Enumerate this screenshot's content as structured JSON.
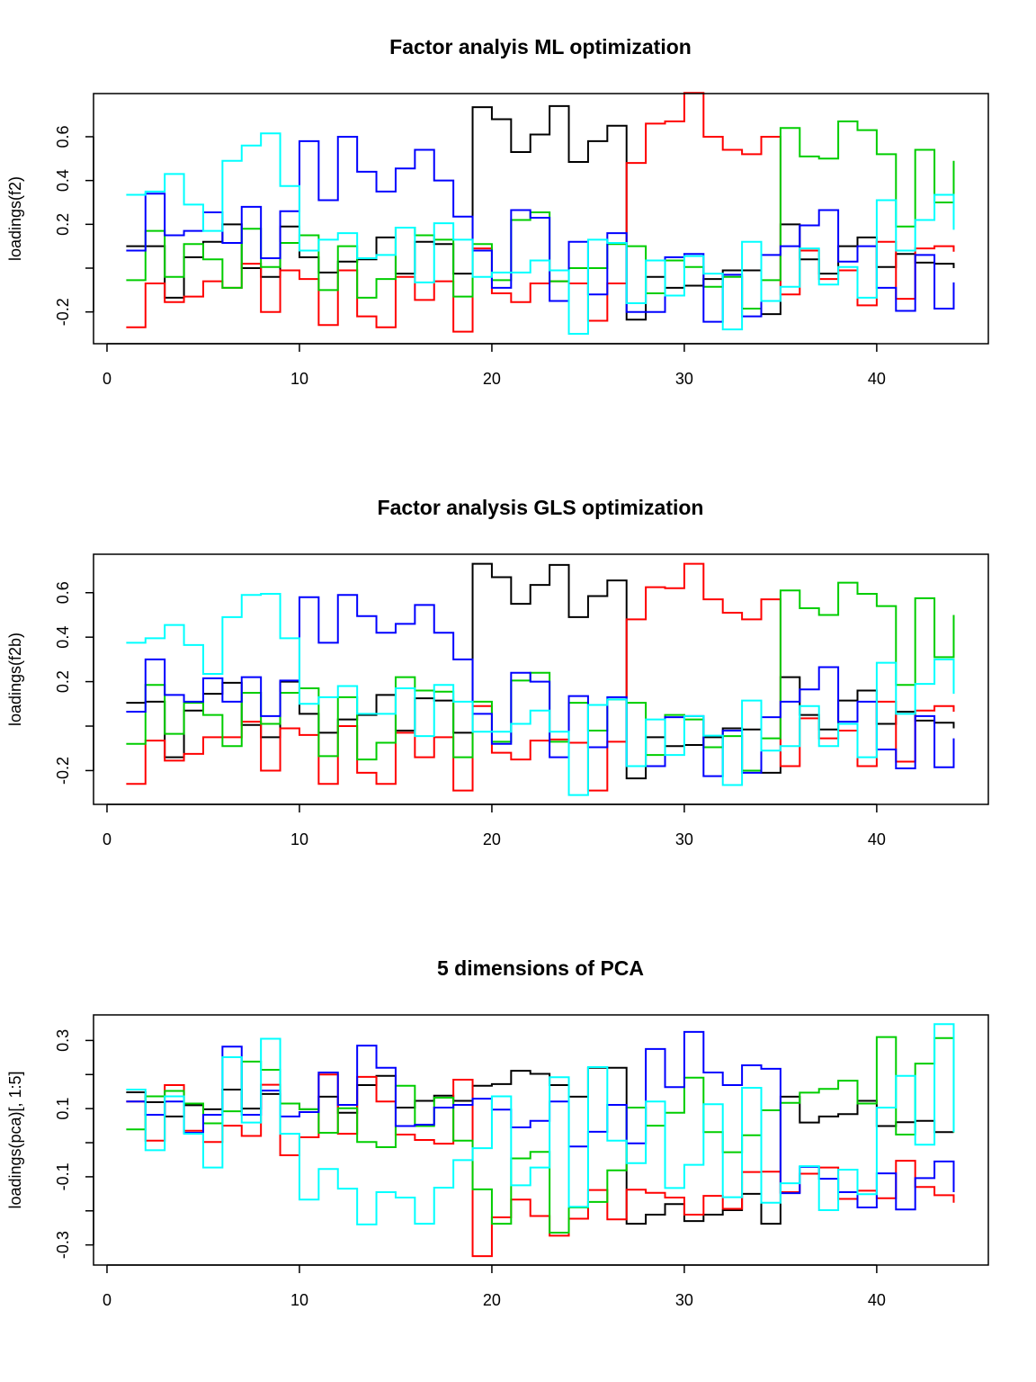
{
  "colors": {
    "series1": "#000000",
    "series2": "#ff0000",
    "series3": "#00cd00",
    "series4": "#0000ff",
    "series5": "#00ffff"
  },
  "chart_data": [
    {
      "type": "line",
      "step": true,
      "title": "Factor analyis ML optimization",
      "xlabel": "",
      "ylabel": "loadings(f2)",
      "xlim": [
        -0.7,
        45.8
      ],
      "ylim": [
        -0.345,
        0.797
      ],
      "xticks": [
        0,
        10,
        20,
        30,
        40
      ],
      "yticks": [
        -0.2,
        0.0,
        0.2,
        0.4,
        0.6
      ],
      "ytick_labels": [
        "-0.2",
        "",
        "0.2",
        "0.4",
        "0.6"
      ],
      "grid": false,
      "x": [
        1,
        2,
        3,
        4,
        5,
        6,
        7,
        8,
        9,
        10,
        11,
        12,
        13,
        14,
        15,
        16,
        17,
        18,
        19,
        20,
        21,
        22,
        23,
        24,
        25,
        26,
        27,
        28,
        29,
        30,
        31,
        32,
        33,
        34,
        35,
        36,
        37,
        38,
        39,
        40,
        41,
        42,
        43,
        44
      ],
      "series": [
        {
          "color": "#000000",
          "values": [
            0.1,
            0.1,
            -0.135,
            0.05,
            0.12,
            0.2,
            0.0,
            -0.04,
            0.19,
            0.05,
            -0.02,
            0.03,
            0.04,
            0.14,
            -0.025,
            0.12,
            0.11,
            -0.025,
            0.735,
            0.68,
            0.53,
            0.61,
            0.74,
            0.485,
            0.58,
            0.65,
            -0.235,
            -0.04,
            -0.09,
            -0.08,
            -0.05,
            -0.01,
            -0.01,
            -0.21,
            0.2,
            0.04,
            -0.025,
            0.1,
            0.14,
            0.005,
            0.065,
            0.025,
            0.02,
            0.0
          ]
        },
        {
          "color": "#ff0000",
          "values": [
            -0.27,
            -0.07,
            -0.155,
            -0.13,
            -0.06,
            -0.09,
            0.02,
            -0.2,
            -0.01,
            -0.05,
            -0.26,
            -0.01,
            -0.22,
            -0.27,
            -0.04,
            -0.145,
            -0.06,
            -0.29,
            0.09,
            -0.115,
            -0.155,
            -0.07,
            -0.06,
            -0.07,
            -0.24,
            -0.07,
            0.48,
            0.66,
            0.67,
            0.8,
            0.6,
            0.54,
            0.52,
            0.6,
            -0.12,
            0.08,
            -0.05,
            -0.01,
            -0.17,
            0.12,
            -0.14,
            0.09,
            0.1,
            0.075
          ]
        },
        {
          "color": "#00cd00",
          "values": [
            -0.055,
            0.17,
            -0.04,
            0.11,
            0.04,
            -0.09,
            0.18,
            0.005,
            0.115,
            0.15,
            -0.1,
            0.1,
            -0.135,
            -0.05,
            0.185,
            0.15,
            0.13,
            -0.13,
            0.11,
            -0.055,
            0.22,
            0.255,
            -0.06,
            0.0,
            0.0,
            0.11,
            0.1,
            -0.115,
            0.035,
            0.005,
            -0.085,
            -0.04,
            -0.185,
            -0.055,
            0.64,
            0.51,
            0.5,
            0.67,
            0.63,
            0.52,
            0.19,
            0.54,
            0.3,
            0.49
          ]
        },
        {
          "color": "#0000ff",
          "values": [
            0.08,
            0.34,
            0.15,
            0.17,
            0.255,
            0.115,
            0.28,
            0.045,
            0.26,
            0.58,
            0.31,
            0.6,
            0.44,
            0.35,
            0.455,
            0.54,
            0.4,
            0.235,
            0.08,
            -0.09,
            0.265,
            0.23,
            -0.15,
            0.12,
            -0.12,
            0.16,
            -0.2,
            -0.2,
            0.05,
            0.065,
            -0.245,
            -0.03,
            -0.22,
            0.06,
            0.1,
            0.195,
            0.265,
            0.03,
            0.1,
            -0.09,
            -0.195,
            0.06,
            -0.185,
            -0.065
          ]
        },
        {
          "color": "#00ffff",
          "values": [
            0.335,
            0.35,
            0.43,
            0.29,
            0.17,
            0.49,
            0.56,
            0.615,
            0.375,
            0.08,
            0.13,
            0.16,
            0.045,
            0.06,
            0.185,
            -0.065,
            0.205,
            0.13,
            -0.04,
            -0.02,
            -0.02,
            0.035,
            -0.01,
            -0.3,
            0.13,
            0.115,
            -0.16,
            0.035,
            -0.125,
            0.055,
            -0.025,
            -0.28,
            0.12,
            -0.15,
            -0.085,
            0.09,
            -0.075,
            0.005,
            -0.135,
            0.31,
            0.08,
            0.22,
            0.335,
            0.175
          ]
        }
      ]
    },
    {
      "type": "line",
      "step": true,
      "title": "Factor analysis GLS optimization",
      "xlabel": "",
      "ylabel": "loadings(f2b)",
      "xlim": [
        -0.7,
        45.8
      ],
      "ylim": [
        -0.352,
        0.773
      ],
      "xticks": [
        0,
        10,
        20,
        30,
        40
      ],
      "yticks": [
        -0.2,
        0.0,
        0.2,
        0.4,
        0.6
      ],
      "ytick_labels": [
        "-0.2",
        "",
        "0.2",
        "0.4",
        "0.6"
      ],
      "grid": false,
      "x": [
        1,
        2,
        3,
        4,
        5,
        6,
        7,
        8,
        9,
        10,
        11,
        12,
        13,
        14,
        15,
        16,
        17,
        18,
        19,
        20,
        21,
        22,
        23,
        24,
        25,
        26,
        27,
        28,
        29,
        30,
        31,
        32,
        33,
        34,
        35,
        36,
        37,
        38,
        39,
        40,
        41,
        42,
        43,
        44
      ],
      "series": [
        {
          "color": "#000000",
          "values": [
            0.105,
            0.11,
            -0.14,
            0.07,
            0.145,
            0.195,
            0.005,
            -0.05,
            0.2,
            0.055,
            -0.03,
            0.03,
            0.05,
            0.14,
            -0.02,
            0.125,
            0.115,
            -0.03,
            0.73,
            0.67,
            0.55,
            0.635,
            0.725,
            0.49,
            0.585,
            0.655,
            -0.235,
            -0.05,
            -0.09,
            -0.085,
            -0.05,
            -0.01,
            -0.015,
            -0.21,
            0.22,
            0.05,
            -0.015,
            0.115,
            0.16,
            0.01,
            0.065,
            0.025,
            0.015,
            -0.01
          ]
        },
        {
          "color": "#ff0000",
          "values": [
            -0.26,
            -0.065,
            -0.155,
            -0.125,
            -0.05,
            -0.05,
            0.02,
            -0.2,
            -0.01,
            -0.04,
            -0.26,
            0.0,
            -0.21,
            -0.26,
            -0.03,
            -0.14,
            -0.05,
            -0.29,
            0.09,
            -0.12,
            -0.15,
            -0.065,
            -0.06,
            -0.075,
            -0.29,
            -0.07,
            0.48,
            0.625,
            0.62,
            0.73,
            0.57,
            0.51,
            0.48,
            0.57,
            -0.18,
            0.035,
            -0.055,
            -0.02,
            -0.18,
            0.11,
            -0.16,
            0.07,
            0.09,
            0.065
          ]
        },
        {
          "color": "#00cd00",
          "values": [
            -0.08,
            0.185,
            -0.035,
            0.105,
            0.05,
            -0.09,
            0.15,
            0.01,
            0.15,
            0.17,
            -0.135,
            0.13,
            -0.15,
            -0.075,
            0.22,
            0.16,
            0.155,
            -0.14,
            0.11,
            -0.07,
            0.205,
            0.24,
            -0.07,
            0.105,
            -0.02,
            0.12,
            0.105,
            -0.13,
            0.05,
            0.03,
            -0.095,
            -0.045,
            -0.2,
            -0.055,
            0.61,
            0.53,
            0.5,
            0.645,
            0.595,
            0.54,
            0.185,
            0.575,
            0.31,
            0.5
          ]
        },
        {
          "color": "#0000ff",
          "values": [
            0.065,
            0.3,
            0.14,
            0.11,
            0.215,
            0.11,
            0.22,
            0.045,
            0.205,
            0.58,
            0.375,
            0.59,
            0.495,
            0.42,
            0.46,
            0.545,
            0.42,
            0.3,
            0.055,
            -0.08,
            0.24,
            0.2,
            -0.14,
            0.135,
            -0.095,
            0.13,
            -0.18,
            -0.18,
            0.04,
            0.045,
            -0.225,
            -0.02,
            -0.21,
            0.04,
            0.11,
            0.165,
            0.265,
            0.02,
            0.11,
            -0.105,
            -0.19,
            0.045,
            -0.185,
            -0.055
          ]
        },
        {
          "color": "#00ffff",
          "values": [
            0.375,
            0.395,
            0.455,
            0.365,
            0.235,
            0.49,
            0.59,
            0.595,
            0.395,
            0.1,
            0.13,
            0.18,
            0.055,
            0.055,
            0.17,
            -0.045,
            0.185,
            0.11,
            -0.025,
            -0.025,
            0.01,
            0.07,
            -0.025,
            -0.31,
            0.095,
            0.12,
            -0.18,
            0.03,
            -0.13,
            0.045,
            -0.043,
            -0.265,
            0.115,
            -0.11,
            -0.09,
            0.09,
            -0.09,
            0.01,
            -0.14,
            0.285,
            0.055,
            0.19,
            0.3,
            0.145
          ]
        }
      ]
    },
    {
      "type": "line",
      "step": true,
      "title": "5 dimensions of PCA",
      "xlabel": "",
      "ylabel": "loadings(pca)[, 1:5]",
      "xlim": [
        -0.7,
        45.8
      ],
      "ylim": [
        -0.359,
        0.375
      ],
      "xticks": [
        0,
        10,
        20,
        30,
        40
      ],
      "yticks": [
        -0.3,
        -0.2,
        -0.1,
        0.0,
        0.1,
        0.2,
        0.3
      ],
      "ytick_labels": [
        "-0.3",
        "",
        "-0.1",
        "",
        "0.1",
        "",
        "0.3"
      ],
      "grid": false,
      "x": [
        1,
        2,
        3,
        4,
        5,
        6,
        7,
        8,
        9,
        10,
        11,
        12,
        13,
        14,
        15,
        16,
        17,
        18,
        19,
        20,
        21,
        22,
        23,
        24,
        25,
        26,
        27,
        28,
        29,
        30,
        31,
        32,
        33,
        34,
        35,
        36,
        37,
        38,
        39,
        40,
        41,
        42,
        43,
        44
      ],
      "series": [
        {
          "color": "#000000",
          "values": [
            0.148,
            0.119,
            0.077,
            0.11,
            0.098,
            0.156,
            0.1,
            0.143,
            0.115,
            0.098,
            0.135,
            0.088,
            0.169,
            0.196,
            0.103,
            0.123,
            0.138,
            0.123,
            0.167,
            0.172,
            0.211,
            0.202,
            0.169,
            0.135,
            0.22,
            0.22,
            -0.238,
            -0.211,
            -0.18,
            -0.23,
            -0.211,
            -0.198,
            -0.15,
            -0.238,
            0.135,
            0.059,
            0.077,
            0.084,
            0.123,
            0.049,
            0.06,
            0.064,
            0.031,
            0.031
          ]
        },
        {
          "color": "#ff0000",
          "values": [
            0.121,
            0.006,
            0.169,
            0.035,
            0.002,
            0.05,
            0.02,
            0.17,
            -0.037,
            0.016,
            0.2,
            0.026,
            0.193,
            0.121,
            0.024,
            0.008,
            -0.003,
            0.185,
            -0.333,
            -0.219,
            -0.167,
            -0.215,
            -0.273,
            -0.223,
            -0.139,
            -0.225,
            -0.138,
            -0.147,
            -0.161,
            -0.211,
            -0.156,
            -0.194,
            -0.086,
            -0.085,
            -0.145,
            -0.091,
            -0.073,
            -0.165,
            -0.141,
            -0.163,
            -0.053,
            -0.13,
            -0.154,
            -0.176
          ]
        },
        {
          "color": "#00cd00",
          "values": [
            0.039,
            0.136,
            0.152,
            0.115,
            0.057,
            0.092,
            0.238,
            0.214,
            0.115,
            0.098,
            0.029,
            0.101,
            0.002,
            -0.013,
            0.167,
            0.049,
            0.132,
            0.006,
            -0.137,
            -0.238,
            -0.046,
            -0.027,
            -0.264,
            -0.19,
            -0.174,
            -0.081,
            0.103,
            0.05,
            0.088,
            0.191,
            0.031,
            -0.028,
            0.022,
            0.095,
            0.117,
            0.147,
            0.158,
            0.182,
            0.115,
            0.31,
            0.024,
            0.232,
            0.307,
            0.03
          ]
        },
        {
          "color": "#0000ff",
          "values": [
            0.121,
            0.082,
            0.121,
            0.029,
            0.082,
            0.282,
            0.082,
            0.153,
            0.077,
            0.09,
            0.206,
            0.111,
            0.285,
            0.22,
            0.049,
            0.053,
            0.103,
            0.111,
            0.129,
            0.097,
            0.045,
            0.064,
            0.121,
            -0.011,
            0.032,
            0.111,
            -0.002,
            0.275,
            0.163,
            0.325,
            0.206,
            0.169,
            0.227,
            0.217,
            -0.148,
            -0.071,
            -0.106,
            -0.145,
            -0.19,
            -0.09,
            -0.196,
            -0.104,
            -0.055,
            -0.145
          ]
        },
        {
          "color": "#00ffff",
          "values": [
            0.156,
            -0.022,
            0.136,
            0.026,
            -0.073,
            0.251,
            0.059,
            0.305,
            0.026,
            -0.167,
            -0.077,
            -0.135,
            -0.24,
            -0.145,
            -0.161,
            -0.238,
            -0.132,
            -0.051,
            -0.016,
            0.136,
            -0.125,
            -0.073,
            0.192,
            -0.188,
            0.222,
            0.006,
            -0.06,
            0.121,
            -0.133,
            -0.065,
            0.113,
            -0.16,
            0.161,
            -0.176,
            -0.119,
            -0.069,
            -0.198,
            -0.079,
            -0.151,
            0.103,
            0.196,
            -0.006,
            0.348,
            0.031
          ]
        }
      ]
    }
  ]
}
